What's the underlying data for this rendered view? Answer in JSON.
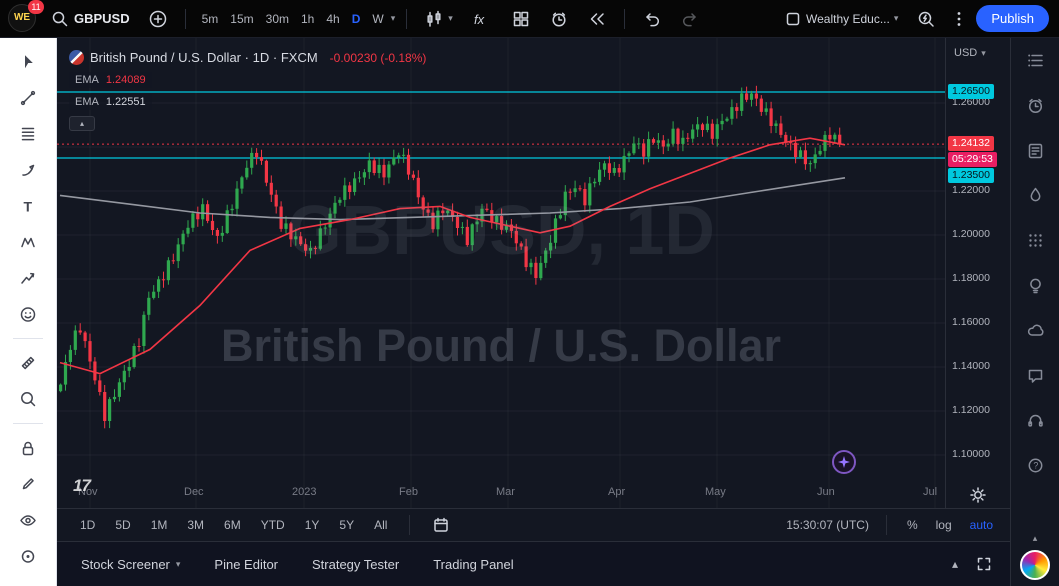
{
  "topbar": {
    "logo_text": "WE",
    "notification_count": "11",
    "symbol_search": "GBPUSD",
    "intervals": [
      "5m",
      "15m",
      "30m",
      "1h",
      "4h",
      "D",
      "W"
    ],
    "active_interval": "D",
    "layout_name": "Wealthy Educ...",
    "publish_label": "Publish",
    "icons": [
      "search-icon",
      "plus-circle-icon",
      "chart-type-candles-icon",
      "indicators-fx-icon",
      "layout-grid-icon",
      "alert-clock-icon",
      "bar-replay-icon",
      "undo-icon",
      "redo-icon",
      "save-layout-icon",
      "quick-search-icon",
      "more-menu-icon"
    ]
  },
  "chart": {
    "symbol_title": "British Pound / U.S. Dollar",
    "sep": "·",
    "interval_label": "1D",
    "exchange": "FXCM",
    "change_text": "-0.00230 (-0.18%)",
    "ema_fast_label": "EMA",
    "ema_fast_value": "1.24089",
    "ema_slow_label": "EMA",
    "ema_slow_value": "1.22551",
    "watermark_line1": "GBPUSD, 1D",
    "watermark_line2": "British Pound / U.S. Dollar",
    "last_price": "1.24132",
    "countdown": "05:29:53",
    "level_upper": "1.26500",
    "level_lower": "1.23500",
    "currency_selector": "USD",
    "tv_logo_text": "17",
    "axis_ticks": [
      {
        "label": "1.26000",
        "price": 1.26
      },
      {
        "label": "1.22000",
        "price": 1.22
      },
      {
        "label": "1.20000",
        "price": 1.2
      },
      {
        "label": "1.18000",
        "price": 1.18
      },
      {
        "label": "1.16000",
        "price": 1.16
      },
      {
        "label": "1.14000",
        "price": 1.14
      },
      {
        "label": "1.12000",
        "price": 1.12
      },
      {
        "label": "1.10000",
        "price": 1.1
      }
    ],
    "months": [
      {
        "label": "Nov",
        "x": 33
      },
      {
        "label": "Dec",
        "x": 139
      },
      {
        "label": "2023",
        "x": 247
      },
      {
        "label": "Feb",
        "x": 354
      },
      {
        "label": "Mar",
        "x": 451
      },
      {
        "label": "Apr",
        "x": 563
      },
      {
        "label": "May",
        "x": 660
      },
      {
        "label": "Jun",
        "x": 772
      },
      {
        "label": "Jul",
        "x": 878
      }
    ]
  },
  "chart_data": {
    "type": "candlestick",
    "symbol": "GBPUSD",
    "interval": "1D",
    "x_range": [
      "Nov 2022",
      "Jul 2023"
    ],
    "y_range": [
      1.09,
      1.27
    ],
    "candle_count": 160,
    "close_anchors": [
      [
        0,
        1.132
      ],
      [
        2,
        1.15
      ],
      [
        4,
        1.158
      ],
      [
        7,
        1.135
      ],
      [
        9,
        1.118
      ],
      [
        11,
        1.128
      ],
      [
        14,
        1.142
      ],
      [
        16,
        1.152
      ],
      [
        18,
        1.172
      ],
      [
        20,
        1.178
      ],
      [
        23,
        1.19
      ],
      [
        26,
        1.205
      ],
      [
        29,
        1.212
      ],
      [
        32,
        1.198
      ],
      [
        35,
        1.214
      ],
      [
        38,
        1.232
      ],
      [
        40,
        1.238
      ],
      [
        42,
        1.225
      ],
      [
        45,
        1.205
      ],
      [
        48,
        1.198
      ],
      [
        51,
        1.192
      ],
      [
        54,
        1.205
      ],
      [
        57,
        1.218
      ],
      [
        60,
        1.224
      ],
      [
        63,
        1.232
      ],
      [
        66,
        1.228
      ],
      [
        69,
        1.238
      ],
      [
        71,
        1.23
      ],
      [
        74,
        1.212
      ],
      [
        76,
        1.205
      ],
      [
        78,
        1.212
      ],
      [
        80,
        1.208
      ],
      [
        83,
        1.198
      ],
      [
        86,
        1.212
      ],
      [
        89,
        1.206
      ],
      [
        92,
        1.202
      ],
      [
        95,
        1.188
      ],
      [
        97,
        1.182
      ],
      [
        99,
        1.192
      ],
      [
        101,
        1.205
      ],
      [
        103,
        1.218
      ],
      [
        105,
        1.222
      ],
      [
        107,
        1.216
      ],
      [
        109,
        1.226
      ],
      [
        111,
        1.232
      ],
      [
        113,
        1.228
      ],
      [
        115,
        1.234
      ],
      [
        117,
        1.242
      ],
      [
        119,
        1.238
      ],
      [
        121,
        1.244
      ],
      [
        123,
        1.24
      ],
      [
        125,
        1.246
      ],
      [
        127,
        1.242
      ],
      [
        129,
        1.248
      ],
      [
        131,
        1.25
      ],
      [
        133,
        1.246
      ],
      [
        135,
        1.252
      ],
      [
        137,
        1.256
      ],
      [
        139,
        1.262
      ],
      [
        141,
        1.264
      ],
      [
        143,
        1.258
      ],
      [
        145,
        1.252
      ],
      [
        147,
        1.246
      ],
      [
        149,
        1.24
      ],
      [
        151,
        1.236
      ],
      [
        153,
        1.232
      ],
      [
        155,
        1.24
      ],
      [
        157,
        1.246
      ],
      [
        159,
        1.24132
      ]
    ],
    "ema_fast_points": [
      [
        3,
        1.142
      ],
      [
        43,
        1.137
      ],
      [
        93,
        1.148
      ],
      [
        143,
        1.168
      ],
      [
        193,
        1.193
      ],
      [
        243,
        1.203
      ],
      [
        293,
        1.207
      ],
      [
        343,
        1.212
      ],
      [
        383,
        1.213
      ],
      [
        413,
        1.208
      ],
      [
        453,
        1.204
      ],
      [
        483,
        1.201
      ],
      [
        513,
        1.204
      ],
      [
        553,
        1.213
      ],
      [
        593,
        1.221
      ],
      [
        633,
        1.228
      ],
      [
        673,
        1.235
      ],
      [
        713,
        1.241
      ],
      [
        753,
        1.244
      ],
      [
        788,
        1.241
      ]
    ],
    "ema_slow_points": [
      [
        3,
        1.218
      ],
      [
        73,
        1.214
      ],
      [
        143,
        1.21
      ],
      [
        213,
        1.208
      ],
      [
        283,
        1.207
      ],
      [
        353,
        1.208
      ],
      [
        423,
        1.209
      ],
      [
        493,
        1.21
      ],
      [
        563,
        1.212
      ],
      [
        633,
        1.215
      ],
      [
        703,
        1.22
      ],
      [
        788,
        1.226
      ]
    ],
    "levels": [
      {
        "price": 1.265,
        "label": "1.26500",
        "color": "cyan",
        "style": "solid"
      },
      {
        "price": 1.235,
        "label": "1.23500",
        "color": "cyan",
        "style": "solid"
      },
      {
        "price": 1.24132,
        "label": "1.24132",
        "color": "red",
        "style": "dashed"
      }
    ],
    "grid_prices": [
      1.26,
      1.24,
      1.22,
      1.2,
      1.18,
      1.16,
      1.14,
      1.12,
      1.1
    ]
  },
  "left_toolbar": {
    "tools": [
      "cursor-tool",
      "trend-line-tool",
      "fib-retracement-tool",
      "brush-tool",
      "text-tool",
      "xabcd-pattern-tool",
      "forecast-tool",
      "emoji-tool",
      "measure-tool",
      "zoom-tool",
      "lock-tool",
      "edit-tool",
      "hide-drawings-tool",
      "remove-drawings-tool"
    ]
  },
  "right_sidebar": {
    "icons": [
      "watchlist-icon",
      "alerts-icon",
      "news-icon",
      "hotlists-icon",
      "calendar-icon",
      "ideas-icon",
      "minds-icon",
      "chat-icon",
      "support-icon",
      "help-icon"
    ]
  },
  "bottom_toolbar": {
    "ranges": [
      "1D",
      "5D",
      "1M",
      "3M",
      "6M",
      "YTD",
      "1Y",
      "5Y",
      "All"
    ],
    "clock": "15:30:07 (UTC)",
    "percent_label": "%",
    "log_label": "log",
    "auto_label": "auto"
  },
  "bottom_panel": {
    "tabs": [
      "Stock Screener",
      "Pine Editor",
      "Strategy Tester",
      "Trading Panel"
    ]
  },
  "colors": {
    "accent_blue": "#2962ff",
    "up": "#2fa84f",
    "down": "#f23645",
    "cyan": "#00c9df",
    "countdown_pink": "#e91e63",
    "ema_slow_gray": "#9598a1",
    "axis_text": "#b2b5be"
  }
}
